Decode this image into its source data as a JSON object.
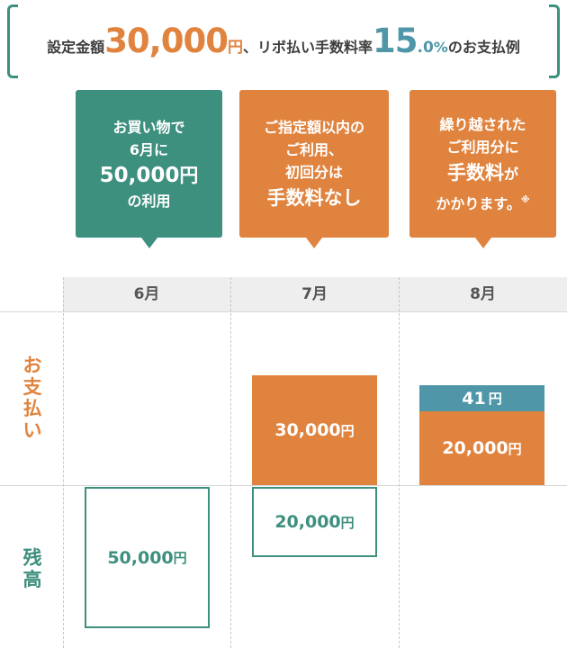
{
  "header": {
    "prefix": "設定金額",
    "amount": "30,000",
    "amount_unit": "円",
    "middle": "、リボ払い手数料率",
    "rate_int": "15",
    "rate_dec": ".0",
    "rate_unit": "%",
    "suffix": "のお支払例"
  },
  "callouts": [
    {
      "lines": [
        "お買い物で",
        "6月に",
        "50,000",
        "円",
        "の利用"
      ]
    },
    {
      "lines": [
        "ご指定額以内の",
        "ご利用、",
        "初回分は",
        "手数料なし"
      ]
    },
    {
      "lines": [
        "繰り越された",
        "ご利用分に",
        "手数料",
        "が",
        "かかります。",
        "※"
      ]
    }
  ],
  "months": [
    "6月",
    "7月",
    "8月"
  ],
  "row_labels": {
    "payment": [
      "お",
      "支",
      "払",
      "い"
    ],
    "balance": [
      "残",
      "高"
    ]
  },
  "bars": {
    "payment_july": {
      "amount": "30,000",
      "unit": "円"
    },
    "payment_aug_fee": {
      "amount": "41",
      "unit": "円"
    },
    "payment_aug_principal": {
      "amount": "20,000",
      "unit": "円"
    },
    "balance_june": {
      "amount": "50,000",
      "unit": "円"
    },
    "balance_july": {
      "amount": "20,000",
      "unit": "円"
    }
  },
  "colors": {
    "teal": "#3d8f7e",
    "orange": "#e0833e",
    "blue": "#4f97a8"
  }
}
